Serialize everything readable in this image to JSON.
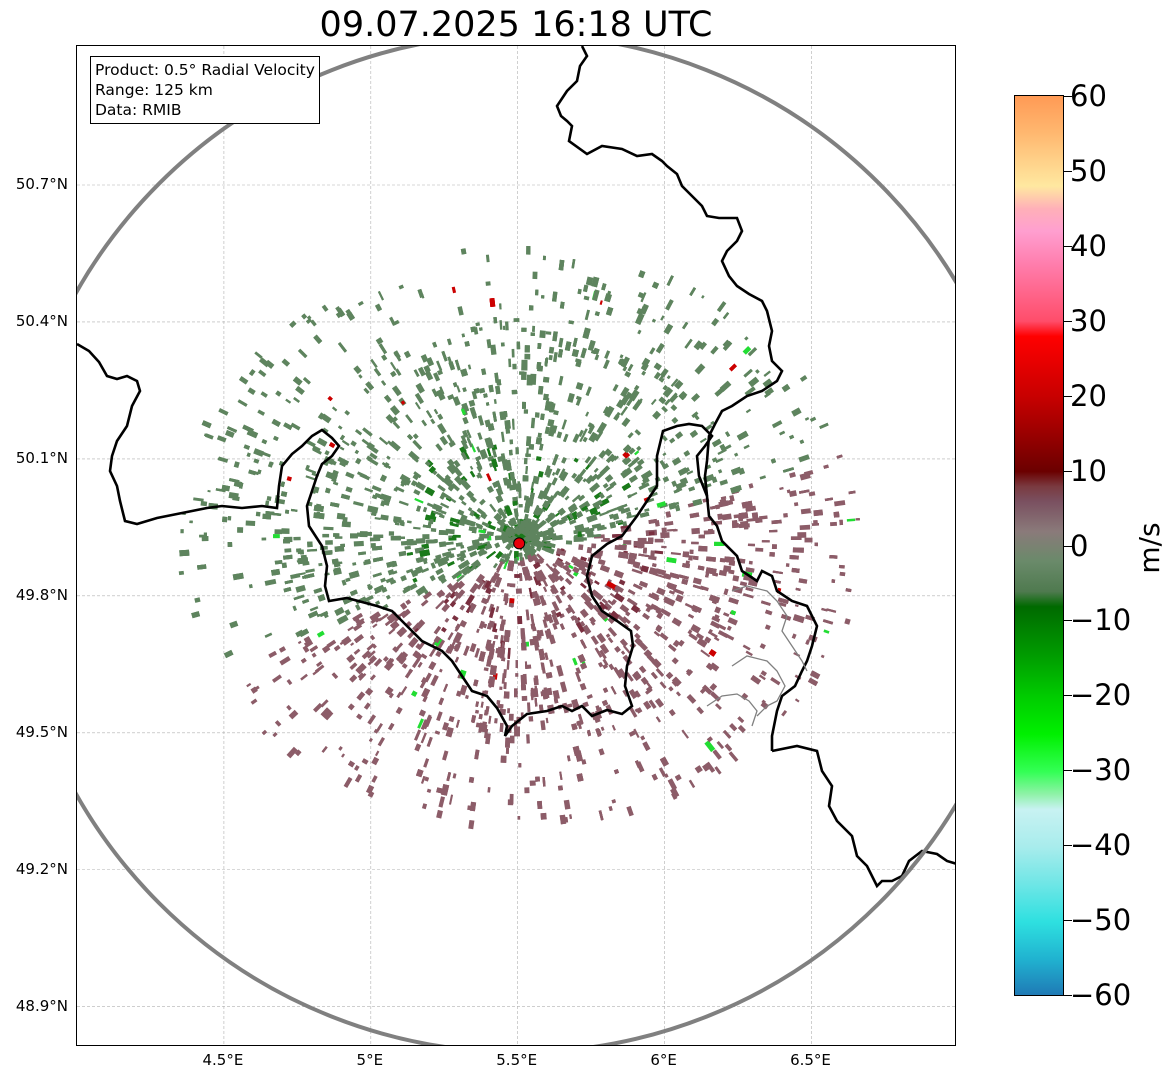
{
  "title": "09.07.2025 16:18 UTC",
  "info": {
    "product": "Product: 0.5° Radial Velocity",
    "range": "Range: 125 km",
    "data": "Data: RMIB"
  },
  "lat_ticks": [
    {
      "value": 50.7,
      "label": "50.7°N"
    },
    {
      "value": 50.4,
      "label": "50.4°N"
    },
    {
      "value": 50.1,
      "label": "50.1°N"
    },
    {
      "value": 49.8,
      "label": "49.8°N"
    },
    {
      "value": 49.5,
      "label": "49.5°N"
    },
    {
      "value": 49.2,
      "label": "49.2°N"
    },
    {
      "value": 48.9,
      "label": "48.9°N"
    }
  ],
  "lon_ticks": [
    {
      "value": 4.5,
      "label": "4.5°E"
    },
    {
      "value": 5.0,
      "label": "5°E"
    },
    {
      "value": 5.5,
      "label": "5.5°E"
    },
    {
      "value": 6.0,
      "label": "6°E"
    },
    {
      "value": 6.5,
      "label": "6.5°E"
    }
  ],
  "extent": {
    "lon_min": 4.0,
    "lon_max": 7.0,
    "lat_min": 48.8,
    "lat_max": 51.0
  },
  "radar": {
    "lon": 5.505,
    "lat": 49.915,
    "marker_color": "#e8000b"
  },
  "range_ring_color": "#808080",
  "colorbar": {
    "label": "m/s",
    "min": -60,
    "max": 60,
    "ticks": [
      {
        "value": 60,
        "label": "60"
      },
      {
        "value": 50,
        "label": "50"
      },
      {
        "value": 40,
        "label": "40"
      },
      {
        "value": 30,
        "label": "30"
      },
      {
        "value": 20,
        "label": "20"
      },
      {
        "value": 10,
        "label": "10"
      },
      {
        "value": 0,
        "label": "0"
      },
      {
        "value": -10,
        "label": "−10"
      },
      {
        "value": -20,
        "label": "−20"
      },
      {
        "value": -30,
        "label": "−30"
      },
      {
        "value": -40,
        "label": "−40"
      },
      {
        "value": -50,
        "label": "−50"
      },
      {
        "value": -60,
        "label": "−60"
      }
    ],
    "stops": [
      {
        "value": -60,
        "color": "#1f77b4"
      },
      {
        "value": -55,
        "color": "#20b2d0"
      },
      {
        "value": -50,
        "color": "#2ee0e0"
      },
      {
        "value": -45,
        "color": "#6ee6e6"
      },
      {
        "value": -40,
        "color": "#a8ecec"
      },
      {
        "value": -35,
        "color": "#c8f2f2"
      },
      {
        "value": -33,
        "color": "#8ff2a8"
      },
      {
        "value": -30,
        "color": "#33ff55"
      },
      {
        "value": -25,
        "color": "#00f000"
      },
      {
        "value": -20,
        "color": "#00cc00"
      },
      {
        "value": -15,
        "color": "#00a000"
      },
      {
        "value": -8,
        "color": "#006a00"
      },
      {
        "value": -6,
        "color": "#4f7a4f"
      },
      {
        "value": -2,
        "color": "#6a8a6a"
      },
      {
        "value": 2,
        "color": "#8a7a7a"
      },
      {
        "value": 6,
        "color": "#7a5060"
      },
      {
        "value": 8,
        "color": "#7a3a40"
      },
      {
        "value": 10,
        "color": "#6b0000"
      },
      {
        "value": 15,
        "color": "#9a0000"
      },
      {
        "value": 20,
        "color": "#c80000"
      },
      {
        "value": 28,
        "color": "#ff0000"
      },
      {
        "value": 30,
        "color": "#ff4d6a"
      },
      {
        "value": 38,
        "color": "#ff80b0"
      },
      {
        "value": 42,
        "color": "#ff9fd0"
      },
      {
        "value": 45,
        "color": "#ffb0b8"
      },
      {
        "value": 48,
        "color": "#ffe8a0"
      },
      {
        "value": 55,
        "color": "#ffb870"
      },
      {
        "value": 60,
        "color": "#ff9a55"
      }
    ]
  },
  "echo_colors": {
    "approaching": "#5e845e",
    "approaching_dark": "#1a7a1a",
    "receding": "#8c5c68",
    "receding_dark": "#7a3040",
    "green_spot": "#22dd33",
    "red_spot": "#cc0000"
  }
}
